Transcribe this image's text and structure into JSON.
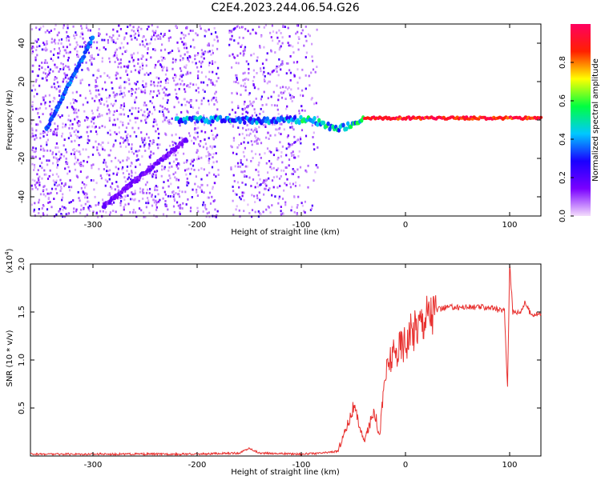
{
  "title": "C2E4.2023.244.06.54.G26",
  "chart_data": [
    {
      "type": "heatmap",
      "xlabel": "Height of straight line (km)",
      "ylabel": "Frequency (Hz)",
      "xlim": [
        -360,
        130
      ],
      "ylim": [
        -50,
        50
      ],
      "x_ticks": [
        -300,
        -200,
        -100,
        0,
        100
      ],
      "y_ticks": [
        -40,
        -20,
        0,
        20,
        40
      ],
      "colorbar": {
        "label": "Normalized spectral amplitude",
        "range": [
          0.0,
          1.0
        ],
        "ticks": [
          0.0,
          0.2,
          0.4,
          0.6,
          0.8
        ],
        "colormap": [
          "#f4ddfc",
          "#7a00ff",
          "#1a00ff",
          "#00c8ff",
          "#00ff40",
          "#ffff00",
          "#ff2000",
          "#ff0060"
        ]
      },
      "features": [
        {
          "label": "",
          "x": [
            -345,
            -300
          ],
          "y": [
            -5,
            43
          ],
          "amplitude": 0.35
        },
        {
          "label": "",
          "x": [
            -290,
            -210
          ],
          "y": [
            -45,
            -10
          ],
          "amplitude": 0.15
        },
        {
          "label": "",
          "x": [
            -220,
            130
          ],
          "y": [
            0,
            2
          ],
          "amplitude": 0.9
        }
      ],
      "grid": false
    },
    {
      "type": "line",
      "xlabel": "Height of straight line (km)",
      "ylabel": "SNR (10 * v/v)",
      "yscale_label": "(x10",
      "yscale_exp": "4",
      "yscale_close": ")",
      "xlim": [
        -360,
        130
      ],
      "ylim": [
        0,
        2.0
      ],
      "x_ticks": [
        -300,
        -200,
        -100,
        0,
        100
      ],
      "y_ticks": [
        0.5,
        1.0,
        1.5,
        2.0
      ],
      "series": [
        {
          "color": "#e8312f",
          "x": [
            -360,
            -300,
            -250,
            -200,
            -160,
            -150,
            -140,
            -100,
            -80,
            -65,
            -55,
            -50,
            -45,
            -40,
            -35,
            -30,
            -25,
            -20,
            -15,
            -10,
            -5,
            0,
            10,
            20,
            30,
            40,
            50,
            60,
            70,
            80,
            90,
            95,
            98,
            100,
            103,
            110,
            115,
            120,
            130
          ],
          "y": [
            0.02,
            0.02,
            0.02,
            0.02,
            0.03,
            0.08,
            0.03,
            0.02,
            0.03,
            0.05,
            0.35,
            0.5,
            0.35,
            0.15,
            0.3,
            0.5,
            0.2,
            0.8,
            1.0,
            1.05,
            1.15,
            1.2,
            1.35,
            1.48,
            1.52,
            1.55,
            1.55,
            1.55,
            1.55,
            1.55,
            1.52,
            1.52,
            0.7,
            2.02,
            1.5,
            1.5,
            1.6,
            1.48,
            1.48
          ]
        }
      ],
      "grid": false
    }
  ]
}
